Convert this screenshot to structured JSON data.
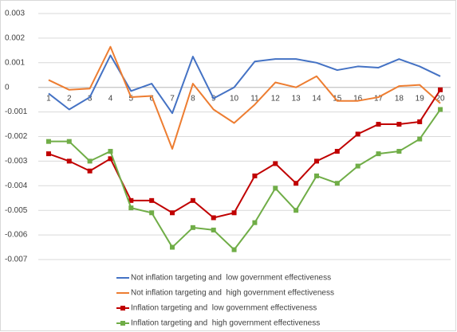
{
  "chart_data": {
    "type": "line",
    "categories": [
      "1",
      "2",
      "3",
      "4",
      "5",
      "6",
      "7",
      "8",
      "9",
      "10",
      "11",
      "12",
      "13",
      "14",
      "15",
      "16",
      "17",
      "18",
      "19",
      "20"
    ],
    "ylim": [
      -0.007,
      0.003
    ],
    "yticks": [
      0.003,
      0.002,
      0.001,
      0,
      -0.001,
      -0.002,
      -0.003,
      -0.004,
      -0.005,
      -0.006,
      -0.007
    ],
    "grid": true,
    "legend": "bottom",
    "series": [
      {
        "name": "Not inflation targeting and  low government effectiveness",
        "color": "#4472c4",
        "values": [
          -0.00025,
          -0.0009,
          -0.0004,
          0.0013,
          -0.00015,
          0.00015,
          -0.00105,
          0.00125,
          -0.00045,
          0.0,
          0.00105,
          0.00115,
          0.00115,
          0.001,
          0.0007,
          0.00085,
          0.0008,
          0.00115,
          0.00085,
          0.00045
        ]
      },
      {
        "name": "Not inflation targeting and  high government effectiveness",
        "color": "#ed7d31",
        "values": [
          0.0003,
          -0.0001,
          -5e-05,
          0.00165,
          -0.0004,
          -0.00035,
          -0.0025,
          0.00015,
          -0.0009,
          -0.00145,
          -0.0007,
          0.0002,
          0.0,
          0.00045,
          -0.00055,
          -0.00055,
          -0.0004,
          5e-05,
          0.0001,
          -0.00065
        ]
      },
      {
        "name": "Inflation targeting and  low government effectiveness",
        "color": "#c00000",
        "marker": "square",
        "values": [
          -0.0027,
          -0.003,
          -0.0034,
          -0.0029,
          -0.0046,
          -0.0046,
          -0.0051,
          -0.0046,
          -0.0053,
          -0.0051,
          -0.0036,
          -0.0031,
          -0.0039,
          -0.003,
          -0.0026,
          -0.0019,
          -0.0015,
          -0.0015,
          -0.0014,
          -0.0001
        ]
      },
      {
        "name": "Inflation targeting and  high government effectiveness",
        "color": "#70ad47",
        "marker": "square",
        "values": [
          -0.0022,
          -0.0022,
          -0.003,
          -0.0026,
          -0.0049,
          -0.0051,
          -0.0065,
          -0.0057,
          -0.0058,
          -0.0066,
          -0.0055,
          -0.0041,
          -0.005,
          -0.0036,
          -0.0039,
          -0.0032,
          -0.0027,
          -0.0026,
          -0.0021,
          -0.0009
        ]
      }
    ]
  }
}
